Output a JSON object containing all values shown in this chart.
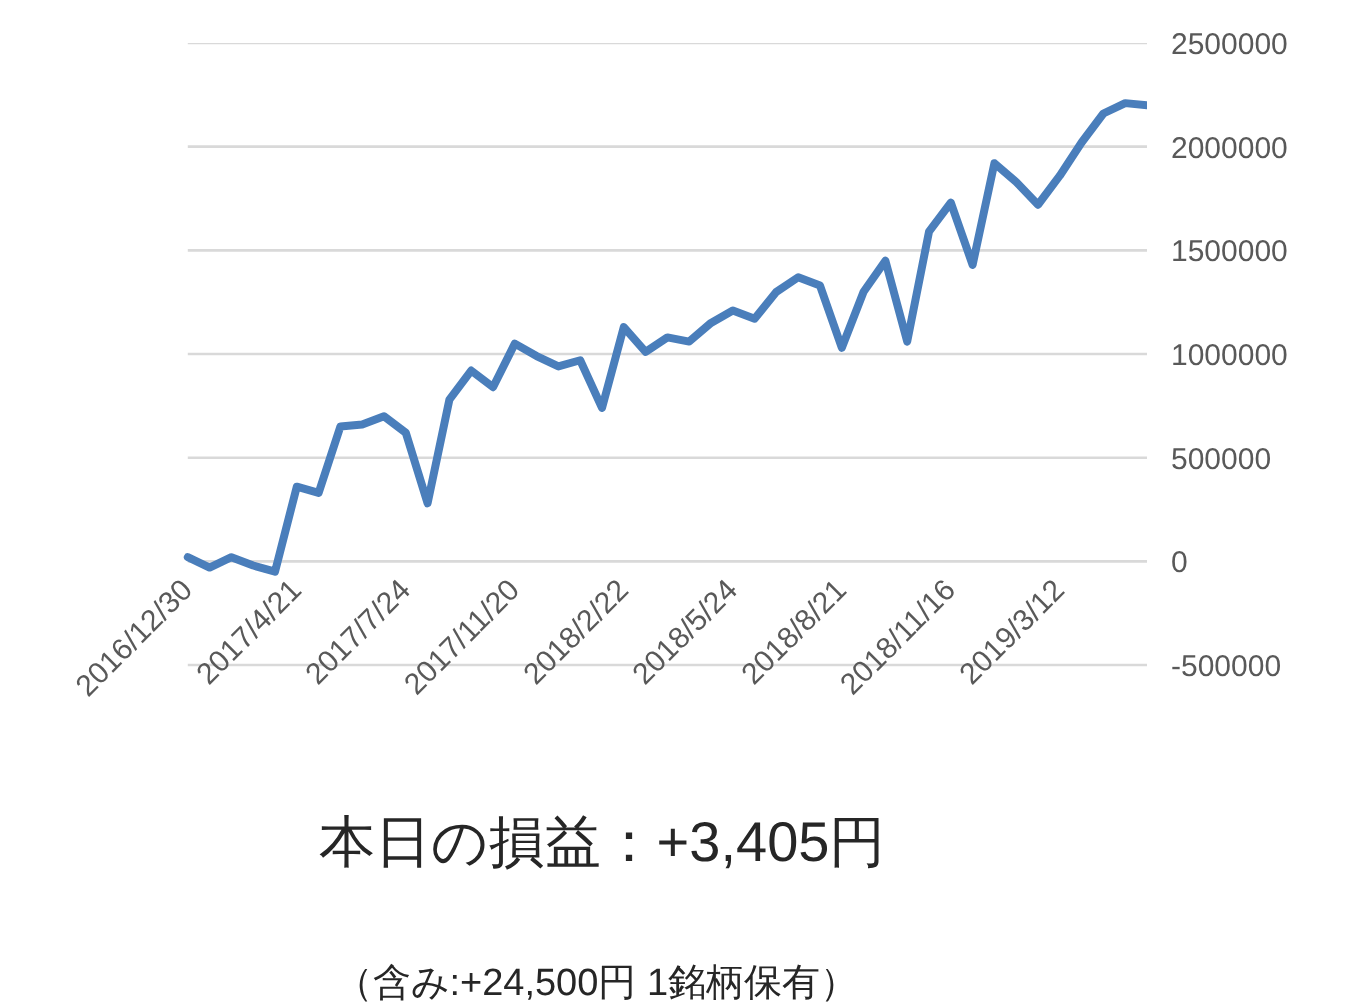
{
  "chart_data": {
    "type": "line",
    "title": "本日の損益：+3,405円",
    "subtitle": "（含み:+24,500円  1銘柄保有）",
    "categories": [
      "2016/12/30",
      null,
      null,
      null,
      null,
      "2017/4/21",
      null,
      null,
      null,
      null,
      "2017/7/24",
      null,
      null,
      null,
      null,
      "2017/11/20",
      null,
      null,
      null,
      null,
      "2018/2/22",
      null,
      null,
      null,
      null,
      "2018/5/24",
      null,
      null,
      null,
      null,
      "2018/8/21",
      null,
      null,
      null,
      null,
      "2018/11/16",
      null,
      null,
      null,
      null,
      "2019/3/12",
      null,
      null,
      null,
      null
    ],
    "series": [
      {
        "color": "#4a7ebb",
        "values": [
          20000,
          -30000,
          20000,
          -20000,
          -50000,
          360000,
          330000,
          650000,
          660000,
          700000,
          620000,
          280000,
          780000,
          920000,
          840000,
          1050000,
          990000,
          940000,
          970000,
          740000,
          1130000,
          1010000,
          1080000,
          1060000,
          1150000,
          1210000,
          1170000,
          1300000,
          1370000,
          1330000,
          1030000,
          1300000,
          1450000,
          1060000,
          1590000,
          1730000,
          1430000,
          1920000,
          1830000,
          1720000,
          1860000,
          2020000,
          2160000,
          2210000,
          2200000
        ]
      }
    ],
    "ylim": [
      -500000,
      2500000
    ],
    "yticks": [
      -500000,
      0,
      500000,
      1000000,
      1500000,
      2000000,
      2500000
    ],
    "grid": "y",
    "marker": "none",
    "line_style": "solid"
  }
}
